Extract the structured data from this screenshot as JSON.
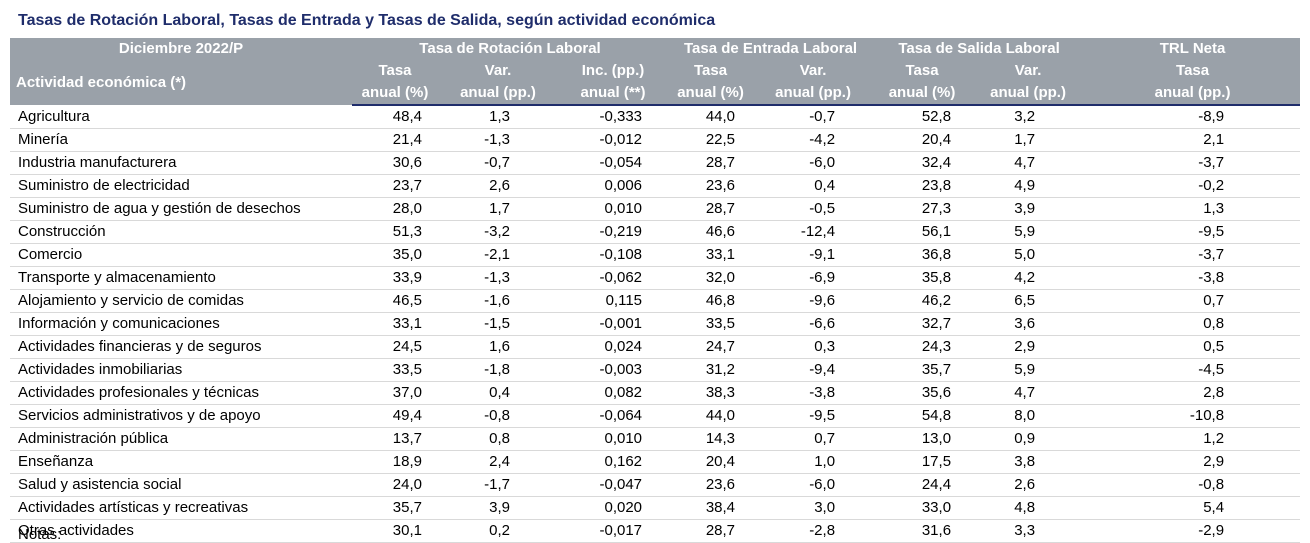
{
  "title": "Tasas de Rotación Laboral, Tasas de Entrada y Tasas de Salida, según actividad económica",
  "header": {
    "period": "Diciembre 2022/P",
    "groups": {
      "rotacion": "Tasa de Rotación Laboral",
      "entrada": "Tasa de Entrada Laboral",
      "salida": "Tasa de Salida Laboral",
      "neta": "TRL Neta"
    },
    "activity_label": "Actividad económica (*)",
    "sub1": [
      "Tasa",
      "Var.",
      "Inc. (pp.)",
      "Tasa",
      "Var.",
      "Tasa",
      "Var.",
      "Tasa"
    ],
    "sub2": [
      "anual (%)",
      "anual (pp.)",
      "anual (**)",
      "anual (%)",
      "anual (pp.)",
      "anual (%)",
      "anual (pp.)",
      "anual (pp.)"
    ]
  },
  "rows": [
    {
      "name": "Agricultura",
      "v": [
        "48,4",
        "1,3",
        "-0,333",
        "44,0",
        "-0,7",
        "52,8",
        "3,2",
        "-8,9"
      ]
    },
    {
      "name": "Minería",
      "v": [
        "21,4",
        "-1,3",
        "-0,012",
        "22,5",
        "-4,2",
        "20,4",
        "1,7",
        "2,1"
      ]
    },
    {
      "name": "Industria manufacturera",
      "v": [
        "30,6",
        "-0,7",
        "-0,054",
        "28,7",
        "-6,0",
        "32,4",
        "4,7",
        "-3,7"
      ]
    },
    {
      "name": "Suministro de electricidad",
      "v": [
        "23,7",
        "2,6",
        "0,006",
        "23,6",
        "0,4",
        "23,8",
        "4,9",
        "-0,2"
      ]
    },
    {
      "name": "Suministro de agua y gestión de desechos",
      "v": [
        "28,0",
        "1,7",
        "0,010",
        "28,7",
        "-0,5",
        "27,3",
        "3,9",
        "1,3"
      ]
    },
    {
      "name": "Construcción",
      "v": [
        "51,3",
        "-3,2",
        "-0,219",
        "46,6",
        "-12,4",
        "56,1",
        "5,9",
        "-9,5"
      ]
    },
    {
      "name": "Comercio",
      "v": [
        "35,0",
        "-2,1",
        "-0,108",
        "33,1",
        "-9,1",
        "36,8",
        "5,0",
        "-3,7"
      ]
    },
    {
      "name": "Transporte y almacenamiento",
      "v": [
        "33,9",
        "-1,3",
        "-0,062",
        "32,0",
        "-6,9",
        "35,8",
        "4,2",
        "-3,8"
      ]
    },
    {
      "name": "Alojamiento y servicio de comidas",
      "v": [
        "46,5",
        "-1,6",
        "0,115",
        "46,8",
        "-9,6",
        "46,2",
        "6,5",
        "0,7"
      ]
    },
    {
      "name": "Información y comunicaciones",
      "v": [
        "33,1",
        "-1,5",
        "-0,001",
        "33,5",
        "-6,6",
        "32,7",
        "3,6",
        "0,8"
      ]
    },
    {
      "name": "Actividades financieras y de seguros",
      "v": [
        "24,5",
        "1,6",
        "0,024",
        "24,7",
        "0,3",
        "24,3",
        "2,9",
        "0,5"
      ]
    },
    {
      "name": "Actividades inmobiliarias",
      "v": [
        "33,5",
        "-1,8",
        "-0,003",
        "31,2",
        "-9,4",
        "35,7",
        "5,9",
        "-4,5"
      ]
    },
    {
      "name": "Actividades profesionales y técnicas",
      "v": [
        "37,0",
        "0,4",
        "0,082",
        "38,3",
        "-3,8",
        "35,6",
        "4,7",
        "2,8"
      ]
    },
    {
      "name": "Servicios administrativos y de apoyo",
      "v": [
        "49,4",
        "-0,8",
        "-0,064",
        "44,0",
        "-9,5",
        "54,8",
        "8,0",
        "-10,8"
      ]
    },
    {
      "name": "Administración pública",
      "v": [
        "13,7",
        "0,8",
        "0,010",
        "14,3",
        "0,7",
        "13,0",
        "0,9",
        "1,2"
      ]
    },
    {
      "name": "Enseñanza",
      "v": [
        "18,9",
        "2,4",
        "0,162",
        "20,4",
        "1,0",
        "17,5",
        "3,8",
        "2,9"
      ]
    },
    {
      "name": "Salud y asistencia social",
      "v": [
        "24,0",
        "-1,7",
        "-0,047",
        "23,6",
        "-6,0",
        "24,4",
        "2,6",
        "-0,8"
      ]
    },
    {
      "name": "Actividades artísticas y recreativas",
      "v": [
        "35,7",
        "3,9",
        "0,020",
        "38,4",
        "3,0",
        "33,0",
        "4,8",
        "5,4"
      ]
    },
    {
      "name": "Otras actividades",
      "v": [
        "30,1",
        "0,2",
        "-0,017",
        "28,7",
        "-2,8",
        "31,6",
        "3,3",
        "-2,9"
      ]
    }
  ],
  "notes_label": "Notas:",
  "colors": {
    "title": "#1f2d6b",
    "header_bg": "#9aa1a9",
    "header_text": "#ffffff",
    "row_rule": "#d9d9d9"
  }
}
